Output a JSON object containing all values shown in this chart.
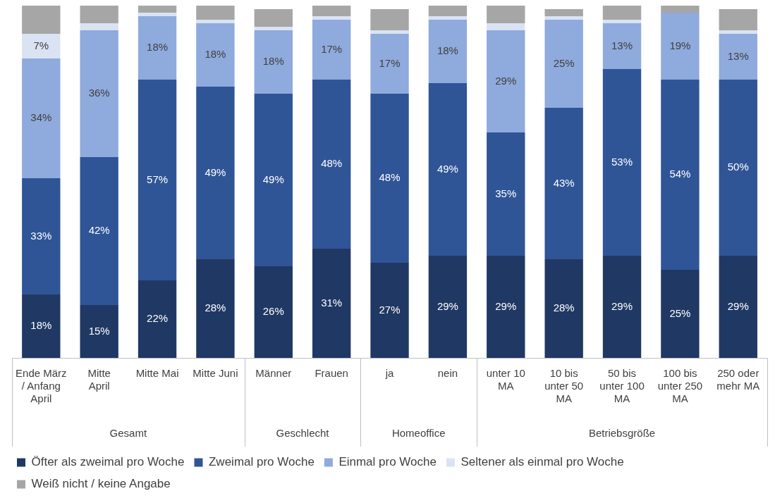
{
  "chart_data": {
    "type": "bar",
    "stacked": true,
    "categories": [
      "Ende März / Anfang April",
      "Mitte April",
      "Mitte Mai",
      "Mitte Juni",
      "Männer",
      "Frauen",
      "ja",
      "nein",
      "unter 10 MA",
      "10 bis unter 50 MA",
      "50 bis unter 100 MA",
      "100 bis unter 250 MA",
      "250 oder mehr MA"
    ],
    "series": [
      {
        "name": "Öfter als zweimal pro Woche",
        "color": "#203864",
        "values": [
          18,
          15,
          22,
          28,
          26,
          31,
          27,
          29,
          29,
          28,
          29,
          25,
          29
        ],
        "value_labels": [
          "18%",
          "15%",
          "22%",
          "28%",
          "26%",
          "31%",
          "27%",
          "29%",
          "29%",
          "28%",
          "29%",
          "25%",
          "29%"
        ]
      },
      {
        "name": "Zweimal pro Woche",
        "color": "#2f5597",
        "values": [
          33,
          42,
          57,
          49,
          49,
          48,
          48,
          49,
          35,
          43,
          53,
          54,
          50
        ],
        "value_labels": [
          "33%",
          "42%",
          "57%",
          "49%",
          "49%",
          "48%",
          "48%",
          "49%",
          "35%",
          "43%",
          "53%",
          "54%",
          "50%"
        ]
      },
      {
        "name": "Einmal pro Woche",
        "color": "#8faadc",
        "values": [
          34,
          36,
          18,
          18,
          18,
          17,
          17,
          18,
          29,
          25,
          13,
          19,
          13
        ],
        "value_labels": [
          "34%",
          "36%",
          "18%",
          "18%",
          "18%",
          "17%",
          "17%",
          "18%",
          "29%",
          "25%",
          "13%",
          "19%",
          "13%"
        ]
      },
      {
        "name": "Seltener als einmal pro Woche",
        "color": "#dae3f3",
        "values": [
          7,
          2,
          1,
          1,
          1,
          1,
          1,
          1,
          2,
          1,
          1,
          0,
          1
        ],
        "value_labels": [
          "7%",
          null,
          null,
          null,
          null,
          null,
          null,
          null,
          null,
          null,
          null,
          null,
          null
        ]
      },
      {
        "name": "Weiß nicht / keine Angabe",
        "color": "#a6a6a6",
        "values": [
          8,
          5,
          2,
          4,
          5,
          3,
          6,
          3,
          5,
          2,
          4,
          2,
          6
        ],
        "value_labels": [
          null,
          null,
          null,
          null,
          null,
          null,
          null,
          null,
          null,
          null,
          null,
          null,
          null
        ]
      }
    ],
    "ylim": [
      0,
      100
    ],
    "legend": "bottom",
    "grid": false,
    "annotations": [
      "Gesamt",
      "Geschlecht",
      "Homeoffice",
      "Betriebsgröße"
    ]
  }
}
